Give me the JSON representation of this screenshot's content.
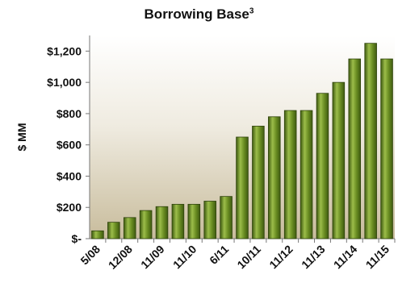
{
  "chart_data": {
    "type": "bar",
    "title": "Borrowing Base",
    "title_superscript": "3",
    "xlabel": "",
    "ylabel": "$ MM",
    "ylim": [
      0,
      1300
    ],
    "y_ticks": [
      {
        "value": 0,
        "label": "$-"
      },
      {
        "value": 200,
        "label": "$200"
      },
      {
        "value": 400,
        "label": "$400"
      },
      {
        "value": 600,
        "label": "$600"
      },
      {
        "value": 800,
        "label": "$800"
      },
      {
        "value": 1000,
        "label": "$1,000"
      },
      {
        "value": 1200,
        "label": "$1,200"
      }
    ],
    "x_tick_labels": [
      "5/08",
      "12/08",
      "11/09",
      "11/10",
      "6/11",
      "10/11",
      "11/12",
      "11/13",
      "11/14",
      "11/15"
    ],
    "x_tick_label_positions": [
      0,
      2,
      4,
      6,
      8,
      10,
      12,
      14,
      16,
      18
    ],
    "values": [
      50,
      105,
      135,
      180,
      205,
      220,
      220,
      240,
      270,
      650,
      720,
      780,
      820,
      820,
      930,
      1000,
      1150,
      1250,
      1150
    ],
    "grid": false,
    "colors": {
      "bar_fill": "#6b8e23",
      "bar_light": "#9cbd4a",
      "bar_dark": "#3e5a10",
      "bar_stroke": "#2f430c",
      "background_top": "#ffffff",
      "background_bottom": "#c8bc9c"
    }
  }
}
